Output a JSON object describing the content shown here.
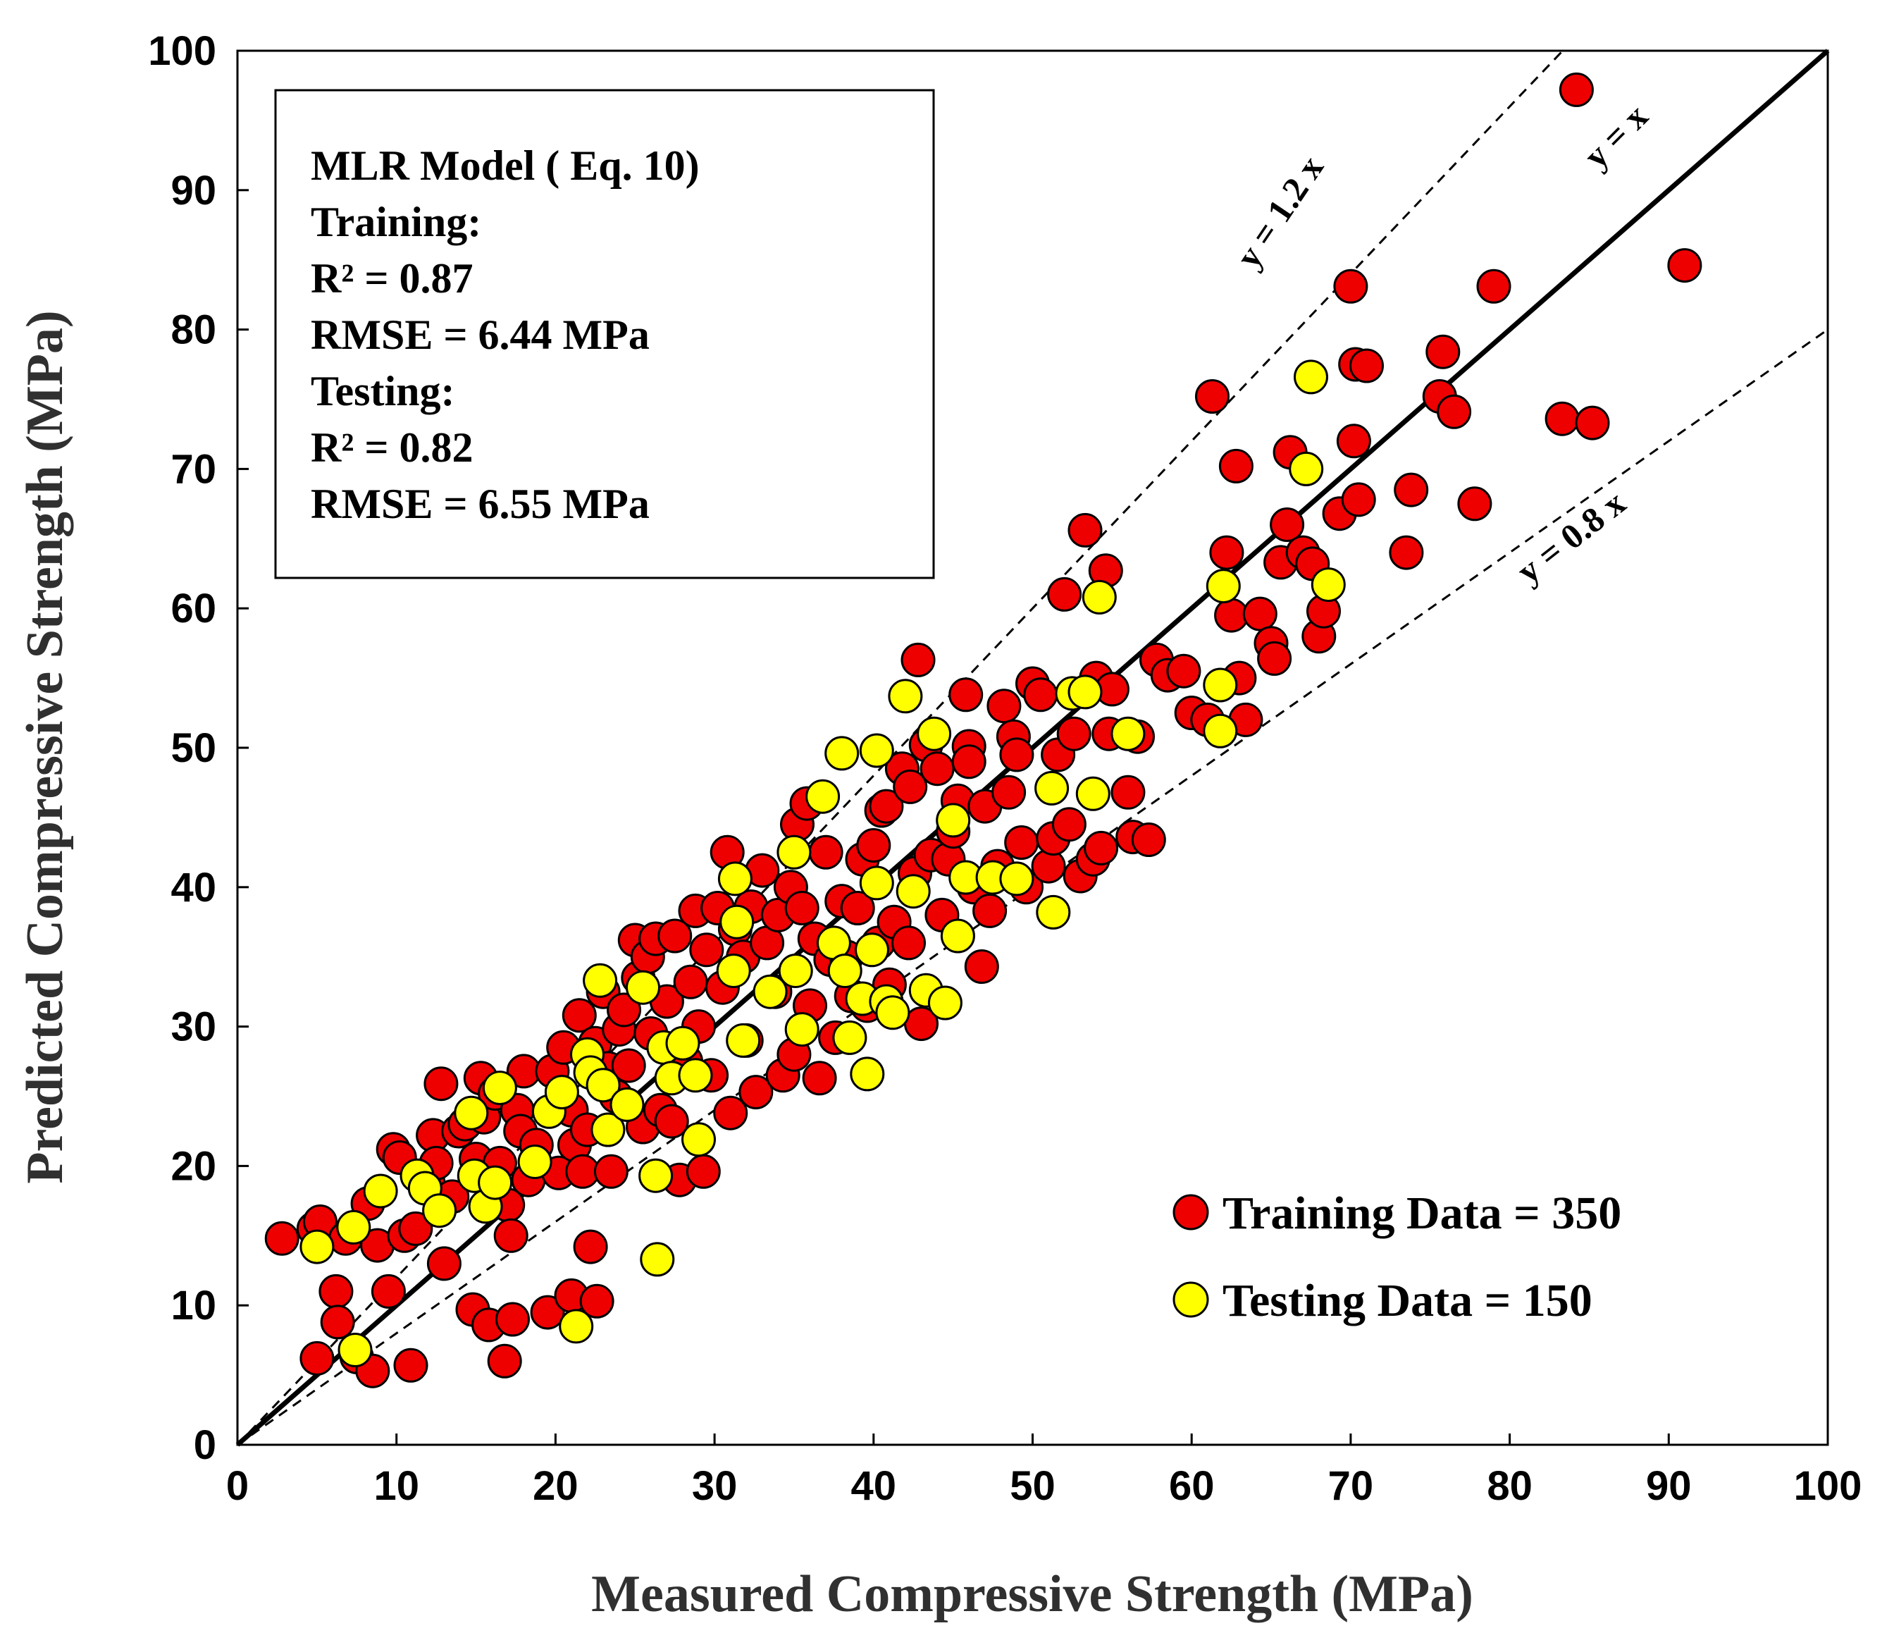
{
  "chart_data": {
    "type": "scatter",
    "title": "",
    "xlabel": "Measured Compressive Strength (MPa)",
    "ylabel": "Predicted Compressive Strength (MPa)",
    "xlim": [
      0,
      100
    ],
    "ylim": [
      0,
      100
    ],
    "xticks": [
      "0",
      "10",
      "20",
      "30",
      "40",
      "50",
      "60",
      "70",
      "80",
      "90",
      "100"
    ],
    "yticks": [
      "0",
      "10",
      "20",
      "30",
      "40",
      "50",
      "60",
      "70",
      "80",
      "90",
      "100"
    ],
    "grid": false,
    "annotation_box": [
      "MLR Model ( Eq. 10)",
      "Training:",
      "R² = 0.87",
      "RMSE = 6.44 MPa",
      "Testing:",
      "R² = 0.82",
      "RMSE = 6.55 MPa"
    ],
    "reference_lines": [
      {
        "label": "y = 1.2 x",
        "slope": 1.2,
        "style": "dashed"
      },
      {
        "label": "y = x",
        "slope": 1.0,
        "style": "solid"
      },
      {
        "label": "y = 0.8 x",
        "slope": 0.8,
        "style": "dashed"
      }
    ],
    "legend_position": "bottom-right",
    "series": [
      {
        "name": "Training Data = 350",
        "color": "#ee0000",
        "points": [
          [
            2.8,
            14.8
          ],
          [
            4.8,
            15.5
          ],
          [
            5.2,
            16.0
          ],
          [
            5.0,
            6.2
          ],
          [
            6.2,
            11.0
          ],
          [
            6.3,
            8.8
          ],
          [
            6.8,
            14.8
          ],
          [
            7.5,
            6.3
          ],
          [
            8.2,
            17.3
          ],
          [
            8.5,
            5.3
          ],
          [
            8.8,
            14.3
          ],
          [
            9.5,
            11.0
          ],
          [
            9.8,
            21.2
          ],
          [
            10.2,
            20.6
          ],
          [
            10.5,
            15.0
          ],
          [
            10.9,
            5.7
          ],
          [
            11.2,
            15.5
          ],
          [
            12.0,
            18.8
          ],
          [
            12.3,
            22.2
          ],
          [
            12.5,
            20.2
          ],
          [
            12.8,
            25.9
          ],
          [
            13.0,
            13.0
          ],
          [
            13.5,
            17.8
          ],
          [
            13.9,
            22.5
          ],
          [
            14.3,
            23.0
          ],
          [
            14.8,
            9.7
          ],
          [
            15.0,
            20.5
          ],
          [
            15.3,
            26.3
          ],
          [
            15.5,
            23.5
          ],
          [
            15.8,
            8.6
          ],
          [
            16.2,
            25.2
          ],
          [
            16.5,
            20.2
          ],
          [
            16.8,
            6.0
          ],
          [
            17.0,
            17.2
          ],
          [
            17.2,
            15.0
          ],
          [
            17.3,
            9.0
          ],
          [
            17.6,
            24.0
          ],
          [
            17.8,
            22.5
          ],
          [
            18.0,
            26.8
          ],
          [
            18.3,
            19.0
          ],
          [
            18.8,
            21.5
          ],
          [
            19.5,
            9.5
          ],
          [
            19.8,
            26.8
          ],
          [
            20.2,
            19.5
          ],
          [
            20.5,
            28.5
          ],
          [
            21.0,
            24.0
          ],
          [
            21.0,
            10.7
          ],
          [
            21.2,
            21.5
          ],
          [
            21.5,
            30.8
          ],
          [
            21.7,
            19.6
          ],
          [
            22.0,
            22.6
          ],
          [
            22.2,
            14.2
          ],
          [
            22.5,
            28.8
          ],
          [
            22.6,
            10.3
          ],
          [
            23.0,
            32.5
          ],
          [
            23.3,
            27.0
          ],
          [
            23.5,
            19.6
          ],
          [
            23.8,
            25.0
          ],
          [
            24.0,
            29.8
          ],
          [
            24.3,
            31.2
          ],
          [
            24.6,
            27.2
          ],
          [
            25.0,
            36.2
          ],
          [
            25.2,
            33.5
          ],
          [
            25.5,
            22.8
          ],
          [
            25.8,
            35.0
          ],
          [
            26.0,
            29.5
          ],
          [
            26.3,
            36.3
          ],
          [
            26.6,
            24.0
          ],
          [
            27.0,
            31.8
          ],
          [
            27.3,
            23.2
          ],
          [
            27.5,
            36.5
          ],
          [
            27.8,
            19.0
          ],
          [
            28.2,
            27.5
          ],
          [
            28.5,
            33.2
          ],
          [
            28.8,
            38.3
          ],
          [
            29.0,
            30.0
          ],
          [
            29.3,
            19.6
          ],
          [
            29.5,
            35.5
          ],
          [
            29.8,
            26.5
          ],
          [
            30.2,
            38.5
          ],
          [
            30.5,
            32.8
          ],
          [
            30.8,
            42.5
          ],
          [
            31.0,
            23.8
          ],
          [
            31.3,
            37.0
          ],
          [
            31.8,
            35.0
          ],
          [
            32.0,
            29.0
          ],
          [
            32.3,
            38.6
          ],
          [
            32.6,
            25.3
          ],
          [
            33.0,
            41.2
          ],
          [
            33.3,
            36.0
          ],
          [
            33.8,
            32.5
          ],
          [
            34.0,
            38.0
          ],
          [
            34.3,
            26.5
          ],
          [
            34.8,
            40.0
          ],
          [
            35.0,
            28.0
          ],
          [
            35.2,
            44.5
          ],
          [
            35.5,
            38.5
          ],
          [
            35.8,
            46.0
          ],
          [
            36.0,
            31.5
          ],
          [
            36.3,
            36.3
          ],
          [
            36.6,
            26.3
          ],
          [
            37.0,
            42.5
          ],
          [
            37.3,
            34.8
          ],
          [
            37.6,
            29.2
          ],
          [
            38.0,
            39.0
          ],
          [
            38.3,
            35.0
          ],
          [
            38.6,
            32.2
          ],
          [
            39.0,
            38.5
          ],
          [
            39.3,
            42.0
          ],
          [
            39.6,
            31.5
          ],
          [
            40.0,
            43.0
          ],
          [
            40.3,
            36.0
          ],
          [
            40.5,
            45.5
          ],
          [
            40.8,
            45.8
          ],
          [
            41.0,
            33.0
          ],
          [
            41.3,
            37.5
          ],
          [
            41.8,
            48.5
          ],
          [
            42.2,
            36.0
          ],
          [
            42.3,
            47.2
          ],
          [
            42.6,
            41.0
          ],
          [
            42.8,
            56.3
          ],
          [
            43.0,
            30.2
          ],
          [
            43.3,
            50.2
          ],
          [
            43.6,
            42.3
          ],
          [
            44.0,
            48.5
          ],
          [
            44.3,
            38.0
          ],
          [
            44.7,
            42.0
          ],
          [
            45.0,
            44.0
          ],
          [
            45.3,
            46.2
          ],
          [
            45.8,
            53.8
          ],
          [
            46.0,
            50.1
          ],
          [
            46.0,
            49.0
          ],
          [
            46.3,
            40.0
          ],
          [
            46.8,
            34.3
          ],
          [
            47.0,
            45.8
          ],
          [
            47.3,
            38.3
          ],
          [
            47.8,
            41.5
          ],
          [
            48.2,
            53.0
          ],
          [
            48.5,
            46.8
          ],
          [
            48.8,
            50.8
          ],
          [
            49.0,
            49.5
          ],
          [
            49.3,
            43.2
          ],
          [
            49.6,
            40.0
          ],
          [
            50.0,
            54.6
          ],
          [
            50.5,
            53.8
          ],
          [
            51.0,
            41.5
          ],
          [
            51.3,
            43.5
          ],
          [
            51.6,
            49.5
          ],
          [
            52.0,
            61.0
          ],
          [
            52.3,
            44.5
          ],
          [
            52.6,
            51.0
          ],
          [
            53.0,
            40.8
          ],
          [
            53.3,
            65.6
          ],
          [
            53.8,
            42.0
          ],
          [
            54.0,
            55.0
          ],
          [
            54.3,
            42.8
          ],
          [
            54.6,
            62.7
          ],
          [
            54.8,
            51.0
          ],
          [
            55.0,
            54.2
          ],
          [
            56.0,
            46.8
          ],
          [
            56.3,
            43.6
          ],
          [
            56.6,
            50.8
          ],
          [
            57.3,
            43.4
          ],
          [
            57.8,
            56.3
          ],
          [
            58.5,
            55.2
          ],
          [
            59.5,
            55.5
          ],
          [
            60.0,
            52.5
          ],
          [
            61.0,
            52.0
          ],
          [
            61.3,
            75.2
          ],
          [
            62.2,
            64.0
          ],
          [
            62.5,
            59.5
          ],
          [
            62.8,
            70.2
          ],
          [
            63.0,
            55.0
          ],
          [
            63.4,
            52.0
          ],
          [
            64.3,
            59.6
          ],
          [
            65.0,
            57.5
          ],
          [
            65.2,
            56.4
          ],
          [
            65.6,
            63.3
          ],
          [
            66.0,
            66.0
          ],
          [
            66.2,
            71.2
          ],
          [
            67.0,
            64.0
          ],
          [
            67.6,
            63.2
          ],
          [
            68.0,
            58.0
          ],
          [
            68.3,
            59.8
          ],
          [
            69.3,
            66.8
          ],
          [
            70.0,
            83.1
          ],
          [
            70.2,
            72.0
          ],
          [
            70.3,
            77.5
          ],
          [
            70.5,
            67.8
          ],
          [
            71.0,
            77.4
          ],
          [
            73.5,
            64.0
          ],
          [
            73.8,
            68.5
          ],
          [
            75.6,
            75.2
          ],
          [
            75.8,
            78.4
          ],
          [
            76.5,
            74.1
          ],
          [
            77.8,
            67.5
          ],
          [
            79.0,
            83.1
          ],
          [
            83.3,
            73.6
          ],
          [
            84.2,
            97.2
          ],
          [
            85.2,
            73.3
          ],
          [
            91.0,
            84.6
          ]
        ]
      },
      {
        "name": "Testing  Data = 150",
        "color": "#ffff00",
        "points": [
          [
            5.0,
            14.2
          ],
          [
            7.3,
            15.6
          ],
          [
            7.4,
            6.8
          ],
          [
            9.0,
            18.2
          ],
          [
            11.3,
            19.3
          ],
          [
            11.8,
            18.4
          ],
          [
            12.7,
            16.8
          ],
          [
            14.7,
            23.8
          ],
          [
            14.9,
            19.3
          ],
          [
            15.6,
            17.1
          ],
          [
            16.2,
            18.8
          ],
          [
            16.5,
            25.6
          ],
          [
            18.7,
            20.3
          ],
          [
            19.6,
            23.9
          ],
          [
            20.4,
            25.3
          ],
          [
            21.3,
            8.5
          ],
          [
            22.0,
            28.0
          ],
          [
            22.2,
            26.7
          ],
          [
            22.8,
            33.3
          ],
          [
            23.0,
            25.8
          ],
          [
            23.3,
            22.6
          ],
          [
            24.5,
            24.4
          ],
          [
            25.5,
            32.8
          ],
          [
            26.3,
            19.3
          ],
          [
            26.4,
            13.3
          ],
          [
            26.8,
            28.5
          ],
          [
            27.3,
            26.3
          ],
          [
            28.0,
            28.8
          ],
          [
            28.8,
            26.5
          ],
          [
            29.0,
            21.9
          ],
          [
            31.2,
            34.0
          ],
          [
            31.3,
            40.6
          ],
          [
            31.4,
            37.5
          ],
          [
            31.8,
            29.0
          ],
          [
            33.5,
            32.5
          ],
          [
            35.0,
            42.5
          ],
          [
            35.1,
            34.0
          ],
          [
            35.5,
            29.8
          ],
          [
            36.8,
            46.5
          ],
          [
            37.5,
            36.0
          ],
          [
            38.0,
            49.6
          ],
          [
            38.2,
            34.0
          ],
          [
            38.5,
            29.2
          ],
          [
            39.3,
            32.0
          ],
          [
            39.6,
            26.6
          ],
          [
            39.9,
            35.5
          ],
          [
            40.2,
            49.8
          ],
          [
            40.2,
            40.3
          ],
          [
            40.8,
            31.8
          ],
          [
            41.2,
            31.0
          ],
          [
            42.0,
            53.7
          ],
          [
            42.5,
            39.7
          ],
          [
            43.3,
            32.6
          ],
          [
            43.8,
            51.0
          ],
          [
            44.5,
            31.7
          ],
          [
            45.0,
            44.8
          ],
          [
            45.3,
            36.5
          ],
          [
            45.8,
            40.7
          ],
          [
            47.5,
            40.7
          ],
          [
            49.0,
            40.6
          ],
          [
            51.2,
            47.1
          ],
          [
            51.3,
            38.2
          ],
          [
            52.5,
            53.9
          ],
          [
            53.3,
            54.0
          ],
          [
            53.8,
            46.7
          ],
          [
            54.2,
            60.8
          ],
          [
            56.0,
            51.0
          ],
          [
            61.8,
            51.2
          ],
          [
            61.8,
            54.5
          ],
          [
            62.0,
            61.6
          ],
          [
            67.2,
            70.0
          ],
          [
            67.5,
            76.6
          ],
          [
            68.6,
            61.7
          ]
        ]
      }
    ]
  },
  "colors": {
    "training_fill": "#ee0000",
    "testing_fill": "#ffff00",
    "marker_edge": "#000000",
    "axis": "#000000"
  }
}
